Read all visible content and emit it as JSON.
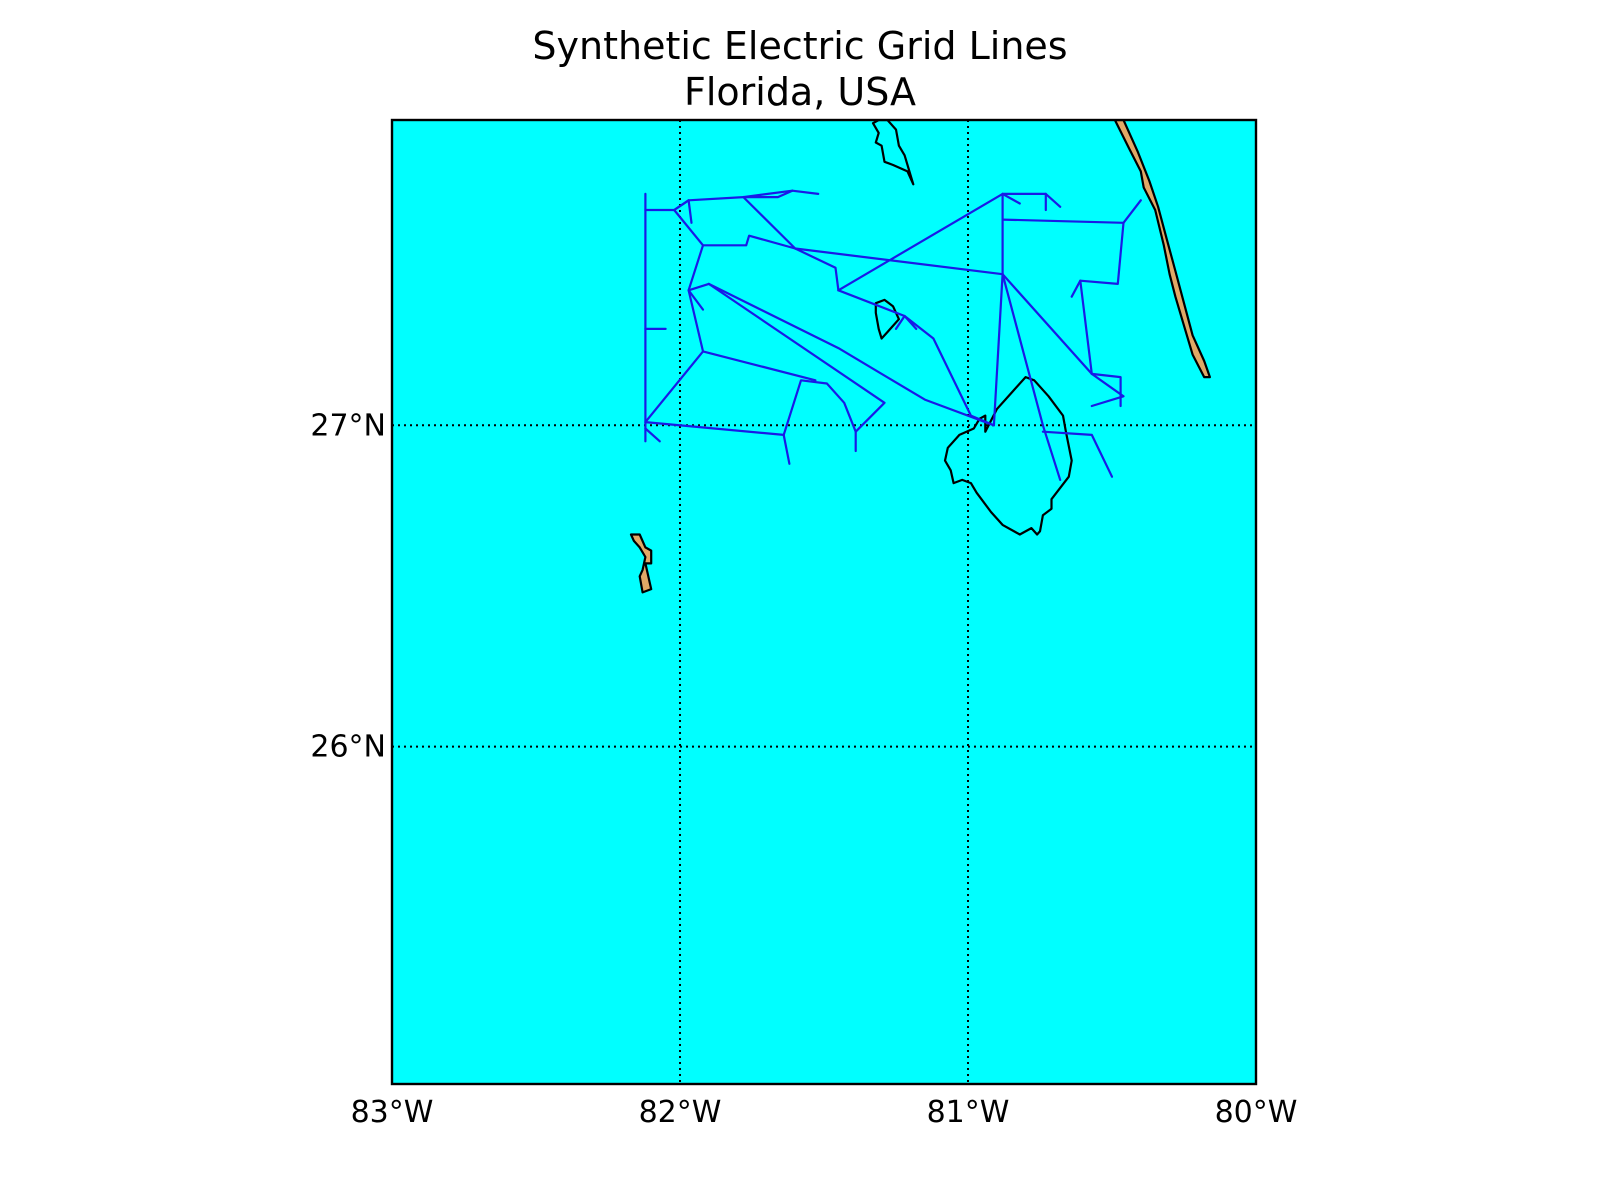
{
  "title": "Synthetic Electric Grid Lines",
  "subtitle": "Florida, USA",
  "map": {
    "extent": {
      "lon": [
        -83,
        -80
      ],
      "lat": [
        24.95,
        27.95
      ]
    },
    "ocean_color": "#00ffff",
    "land_color": "#e0a866",
    "grid_line_color": "#1a1ae6",
    "coastline_color": "#000000",
    "gridlines": {
      "lon": [
        -82,
        -81
      ],
      "lat": [
        26,
        27
      ],
      "style": "dotted"
    },
    "x_ticks": [
      {
        "lon": -83,
        "label": "83°W"
      },
      {
        "lon": -82,
        "label": "82°W"
      },
      {
        "lon": -81,
        "label": "81°W"
      },
      {
        "lon": -80,
        "label": "80°W"
      }
    ],
    "y_ticks": [
      {
        "lat": 27,
        "label": "27°N"
      },
      {
        "lat": 26,
        "label": "26°N"
      }
    ],
    "land_areas": [
      {
        "name": "east-coast-strip",
        "filled": true,
        "coords": [
          [
            -80.49,
            27.95
          ],
          [
            -80.44,
            27.86
          ],
          [
            -80.4,
            27.79
          ],
          [
            -80.39,
            27.74
          ],
          [
            -80.35,
            27.67
          ],
          [
            -80.32,
            27.56
          ],
          [
            -80.3,
            27.47
          ],
          [
            -80.28,
            27.4
          ],
          [
            -80.25,
            27.31
          ],
          [
            -80.22,
            27.22
          ],
          [
            -80.18,
            27.15
          ],
          [
            -80.16,
            27.15
          ],
          [
            -80.18,
            27.2
          ],
          [
            -80.22,
            27.28
          ],
          [
            -80.25,
            27.38
          ],
          [
            -80.28,
            27.48
          ],
          [
            -80.31,
            27.58
          ],
          [
            -80.34,
            27.68
          ],
          [
            -80.37,
            27.76
          ],
          [
            -80.41,
            27.85
          ],
          [
            -80.46,
            27.95
          ]
        ]
      },
      {
        "name": "lake-island",
        "filled": true,
        "coords": [
          [
            -82.17,
            26.66
          ],
          [
            -82.14,
            26.66
          ],
          [
            -82.12,
            26.62
          ],
          [
            -82.1,
            26.61
          ],
          [
            -82.1,
            26.57
          ],
          [
            -82.12,
            26.57
          ],
          [
            -82.11,
            26.53
          ],
          [
            -82.1,
            26.49
          ],
          [
            -82.13,
            26.48
          ],
          [
            -82.14,
            26.53
          ],
          [
            -82.13,
            26.55
          ],
          [
            -82.12,
            26.59
          ],
          [
            -82.14,
            26.62
          ],
          [
            -82.16,
            26.64
          ]
        ]
      }
    ],
    "water_outlines": [
      {
        "name": "northern-lake",
        "coords": [
          [
            -81.33,
            27.94
          ],
          [
            -81.31,
            27.95
          ],
          [
            -81.28,
            27.95
          ],
          [
            -81.25,
            27.92
          ],
          [
            -81.24,
            27.87
          ],
          [
            -81.22,
            27.84
          ],
          [
            -81.19,
            27.75
          ],
          [
            -81.21,
            27.79
          ],
          [
            -81.26,
            27.81
          ],
          [
            -81.29,
            27.82
          ],
          [
            -81.3,
            27.87
          ],
          [
            -81.32,
            27.88
          ],
          [
            -81.31,
            27.91
          ]
        ]
      },
      {
        "name": "small-lake",
        "coords": [
          [
            -81.32,
            27.38
          ],
          [
            -81.29,
            27.39
          ],
          [
            -81.26,
            27.37
          ],
          [
            -81.24,
            27.33
          ],
          [
            -81.28,
            27.29
          ],
          [
            -81.3,
            27.27
          ],
          [
            -81.31,
            27.3
          ],
          [
            -81.32,
            27.35
          ]
        ]
      },
      {
        "name": "lake-okeechobee",
        "coords": [
          [
            -80.94,
            26.98
          ],
          [
            -80.9,
            27.05
          ],
          [
            -80.85,
            27.1
          ],
          [
            -80.8,
            27.15
          ],
          [
            -80.77,
            27.14
          ],
          [
            -80.72,
            27.09
          ],
          [
            -80.67,
            27.03
          ],
          [
            -80.66,
            26.98
          ],
          [
            -80.64,
            26.89
          ],
          [
            -80.65,
            26.84
          ],
          [
            -80.71,
            26.77
          ],
          [
            -80.71,
            26.74
          ],
          [
            -80.74,
            26.72
          ],
          [
            -80.75,
            26.67
          ],
          [
            -80.76,
            26.66
          ],
          [
            -80.78,
            26.68
          ],
          [
            -80.82,
            26.66
          ],
          [
            -80.88,
            26.69
          ],
          [
            -80.92,
            26.73
          ],
          [
            -80.97,
            26.79
          ],
          [
            -80.99,
            26.82
          ],
          [
            -81.02,
            26.83
          ],
          [
            -81.05,
            26.82
          ],
          [
            -81.06,
            26.86
          ],
          [
            -81.08,
            26.89
          ],
          [
            -81.07,
            26.93
          ],
          [
            -81.03,
            26.97
          ],
          [
            -80.98,
            26.99
          ],
          [
            -80.96,
            27.02
          ],
          [
            -80.94,
            27.03
          ]
        ]
      }
    ],
    "transmission_lines": [
      [
        [
          -82.12,
          27.72
        ],
        [
          -82.12,
          27.0
        ],
        [
          -82.12,
          26.95
        ]
      ],
      [
        [
          -82.12,
          26.99
        ],
        [
          -82.07,
          26.95
        ]
      ],
      [
        [
          -82.12,
          27.3
        ],
        [
          -82.05,
          27.3
        ]
      ],
      [
        [
          -82.12,
          27.67
        ],
        [
          -82.02,
          27.67
        ],
        [
          -81.97,
          27.7
        ],
        [
          -81.78,
          27.71
        ],
        [
          -81.61,
          27.73
        ],
        [
          -81.52,
          27.72
        ]
      ],
      [
        [
          -81.61,
          27.73
        ],
        [
          -81.66,
          27.71
        ],
        [
          -81.78,
          27.71
        ]
      ],
      [
        [
          -82.02,
          27.67
        ],
        [
          -81.92,
          27.56
        ],
        [
          -81.77,
          27.56
        ],
        [
          -81.76,
          27.59
        ],
        [
          -81.6,
          27.55
        ],
        [
          -81.46,
          27.49
        ],
        [
          -81.45,
          27.42
        ]
      ],
      [
        [
          -82.02,
          27.67
        ],
        [
          -81.97,
          27.7
        ],
        [
          -81.96,
          27.63
        ]
      ],
      [
        [
          -81.78,
          27.71
        ],
        [
          -81.6,
          27.55
        ]
      ],
      [
        [
          -81.92,
          27.56
        ],
        [
          -81.97,
          27.42
        ],
        [
          -81.92,
          27.23
        ],
        [
          -82.12,
          27.01
        ],
        [
          -81.64,
          26.97
        ],
        [
          -81.58,
          27.14
        ],
        [
          -81.49,
          27.13
        ],
        [
          -81.43,
          27.07
        ],
        [
          -81.39,
          26.98
        ],
        [
          -81.39,
          26.92
        ]
      ],
      [
        [
          -81.64,
          26.97
        ],
        [
          -81.62,
          26.88
        ]
      ],
      [
        [
          -81.97,
          27.42
        ],
        [
          -81.9,
          27.44
        ],
        [
          -81.29,
          27.07
        ],
        [
          -81.39,
          26.98
        ]
      ],
      [
        [
          -81.97,
          27.42
        ],
        [
          -81.92,
          27.36
        ]
      ],
      [
        [
          -81.92,
          27.23
        ],
        [
          -81.53,
          27.14
        ]
      ],
      [
        [
          -81.9,
          27.44
        ],
        [
          -81.45,
          27.24
        ],
        [
          -81.15,
          27.08
        ],
        [
          -80.91,
          27.0
        ],
        [
          -80.99,
          27.03
        ],
        [
          -81.12,
          27.27
        ],
        [
          -81.22,
          27.34
        ]
      ],
      [
        [
          -81.45,
          27.42
        ],
        [
          -81.22,
          27.34
        ],
        [
          -81.18,
          27.3
        ]
      ],
      [
        [
          -81.22,
          27.34
        ],
        [
          -81.25,
          27.3
        ]
      ],
      [
        [
          -81.6,
          27.55
        ],
        [
          -80.88,
          27.47
        ]
      ],
      [
        [
          -81.45,
          27.42
        ],
        [
          -80.88,
          27.72
        ],
        [
          -80.82,
          27.69
        ]
      ],
      [
        [
          -80.88,
          27.72
        ],
        [
          -80.73,
          27.72
        ],
        [
          -80.68,
          27.68
        ]
      ],
      [
        [
          -80.73,
          27.72
        ],
        [
          -80.73,
          27.67
        ]
      ],
      [
        [
          -80.88,
          27.72
        ],
        [
          -80.88,
          27.47
        ],
        [
          -80.91,
          27.0
        ]
      ],
      [
        [
          -80.88,
          27.64
        ],
        [
          -80.46,
          27.63
        ],
        [
          -80.4,
          27.7
        ]
      ],
      [
        [
          -80.46,
          27.63
        ],
        [
          -80.48,
          27.44
        ],
        [
          -80.61,
          27.45
        ],
        [
          -80.64,
          27.4
        ]
      ],
      [
        [
          -80.61,
          27.45
        ],
        [
          -80.57,
          27.16
        ],
        [
          -80.47,
          27.15
        ],
        [
          -80.47,
          27.06
        ]
      ],
      [
        [
          -80.57,
          27.16
        ],
        [
          -80.46,
          27.09
        ],
        [
          -80.57,
          27.06
        ]
      ],
      [
        [
          -80.88,
          27.47
        ],
        [
          -80.57,
          27.16
        ]
      ],
      [
        [
          -80.88,
          27.47
        ],
        [
          -80.74,
          27.0
        ],
        [
          -80.68,
          26.83
        ]
      ],
      [
        [
          -80.74,
          26.98
        ],
        [
          -80.57,
          26.97
        ],
        [
          -80.5,
          26.84
        ]
      ]
    ]
  }
}
